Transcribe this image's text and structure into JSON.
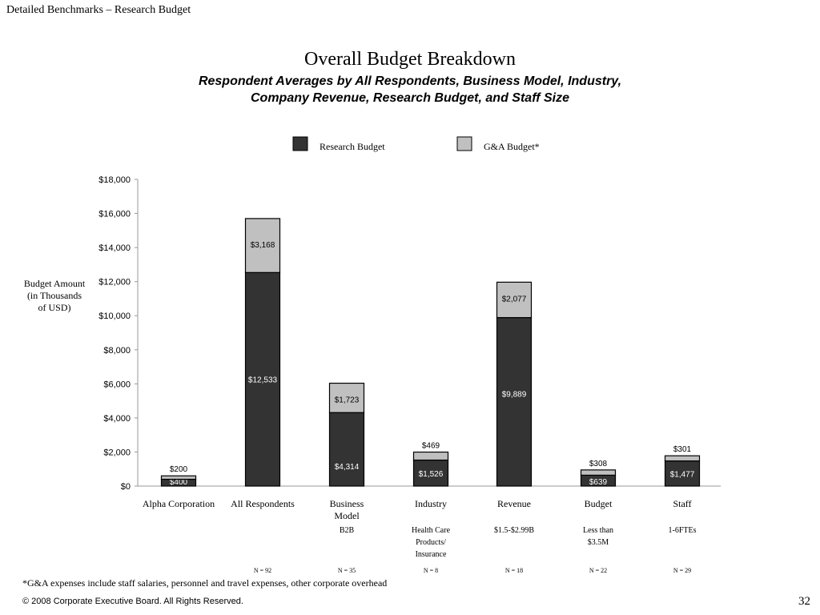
{
  "header": "Detailed Benchmarks – Research Budget",
  "page_number": "32",
  "footnote": "*G&A expenses include staff salaries, personnel and travel expenses, other corporate overhead",
  "copyright": "© 2008 Corporate Executive Board. All Rights Reserved.",
  "chart_data": {
    "type": "bar",
    "stacked": true,
    "title": "Overall Budget Breakdown",
    "subtitle_lines": [
      "Respondent Averages by All Respondents, Business Model, Industry,",
      "Company Revenue, Research Budget, and Staff Size"
    ],
    "ylabel_lines": [
      "Budget Amount",
      "(in Thousands",
      "of USD)"
    ],
    "ylim": [
      0,
      18000
    ],
    "yticks": [
      0,
      2000,
      4000,
      6000,
      8000,
      10000,
      12000,
      14000,
      16000,
      18000
    ],
    "ytick_labels": [
      "$0",
      "$2,000",
      "$4,000",
      "$6,000",
      "$8,000",
      "$10,000",
      "$12,000",
      "$14,000",
      "$16,000",
      "$18,000"
    ],
    "legend_placement": "top-center",
    "categories": [
      {
        "label_lines": [
          "Alpha Corporation"
        ],
        "sub_lines": [],
        "n": ""
      },
      {
        "label_lines": [
          "All Respondents"
        ],
        "sub_lines": [],
        "n": "N = 92"
      },
      {
        "label_lines": [
          "Business",
          "Model"
        ],
        "sub_lines": [
          "B2B"
        ],
        "n": "N = 35"
      },
      {
        "label_lines": [
          "Industry"
        ],
        "sub_lines": [
          "Health Care",
          "Products/",
          "Insurance"
        ],
        "n": "N = 8"
      },
      {
        "label_lines": [
          "Revenue"
        ],
        "sub_lines": [
          "$1.5-$2.99B"
        ],
        "n": "N = 18"
      },
      {
        "label_lines": [
          "Budget"
        ],
        "sub_lines": [
          "Less than",
          "$3.5M"
        ],
        "n": "N = 22"
      },
      {
        "label_lines": [
          "Staff"
        ],
        "sub_lines": [
          "1-6FTEs"
        ],
        "n": "N = 29"
      }
    ],
    "series": [
      {
        "name": "Research Budget",
        "color": "#333333",
        "values": [
          400,
          12533,
          4314,
          1526,
          9889,
          639,
          1477
        ],
        "labels": [
          "$400",
          "$12,533",
          "$4,314",
          "$1,526",
          "$9,889",
          "$639",
          "$1,477"
        ]
      },
      {
        "name": "G&A Budget*",
        "color": "#c0c0c0",
        "values": [
          200,
          3168,
          1723,
          469,
          2077,
          308,
          301
        ],
        "labels": [
          "$200",
          "$3,168",
          "$1,723",
          "$469",
          "$2,077",
          "$308",
          "$301"
        ]
      }
    ]
  }
}
